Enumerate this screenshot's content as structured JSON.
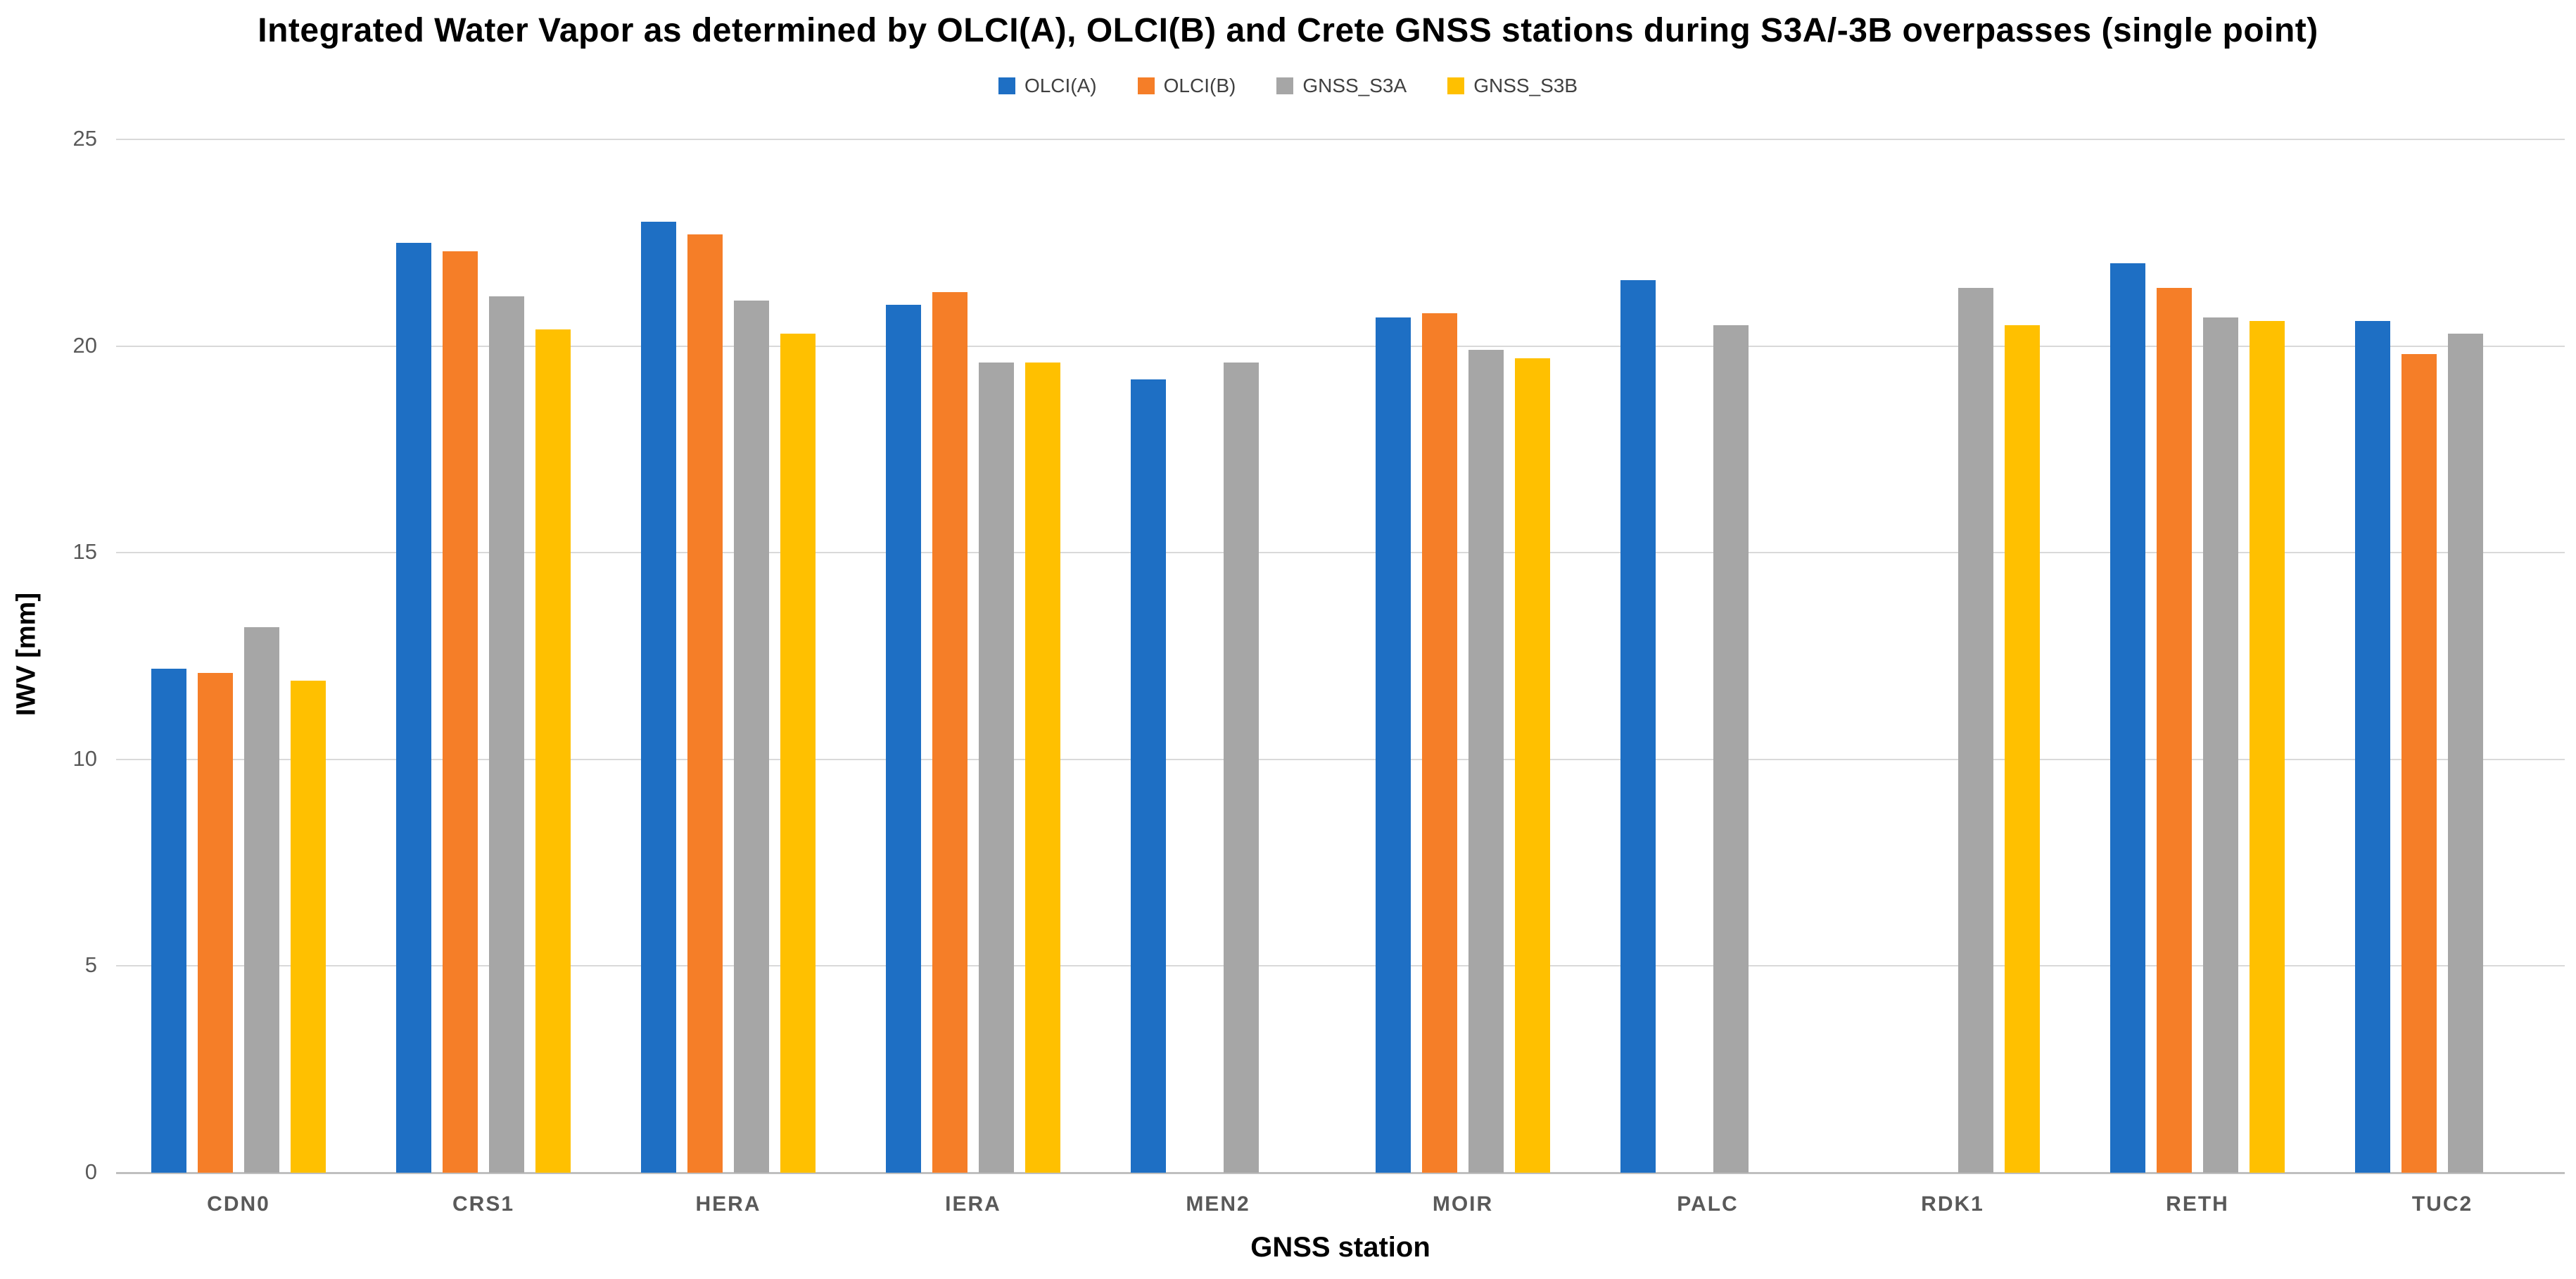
{
  "title": "Integrated Water Vapor as determined by OLCI(A), OLCI(B) and Crete GNSS stations during S3A/-3B overpasses (single point)",
  "axes": {
    "y_title": "IWV [mm]",
    "x_title": "GNSS station",
    "yticks": [
      0,
      5,
      10,
      15,
      20,
      25
    ],
    "ymax": 25
  },
  "colors": {
    "olci_a": "#1e6fc4",
    "olci_b": "#f57e28",
    "gnss_s3a": "#a6a6a6",
    "gnss_s3b": "#ffc000",
    "gridline": "#d9d9d9",
    "tick_text": "#595959"
  },
  "chart_data": {
    "type": "bar",
    "title": "Integrated Water Vapor as determined by OLCI(A), OLCI(B) and Crete GNSS stations during S3A/-3B overpasses (single point)",
    "xlabel": "GNSS station",
    "ylabel": "IWV [mm]",
    "ylim": [
      0,
      25
    ],
    "grid": true,
    "legend_position": "top",
    "categories": [
      "CDN0",
      "CRS1",
      "HERA",
      "IERA",
      "MEN2",
      "MOIR",
      "PALC",
      "RDK1",
      "RETH",
      "TUC2"
    ],
    "series": [
      {
        "name": "OLCI(A)",
        "color": "#1e6fc4",
        "values": [
          12.2,
          22.5,
          23.0,
          21.0,
          19.2,
          20.7,
          21.6,
          null,
          22.0,
          20.6
        ]
      },
      {
        "name": "OLCI(B)",
        "color": "#f57e28",
        "values": [
          12.1,
          22.3,
          22.7,
          21.3,
          null,
          20.8,
          null,
          null,
          21.4,
          19.8
        ]
      },
      {
        "name": "GNSS_S3A",
        "color": "#a6a6a6",
        "values": [
          13.2,
          21.2,
          21.1,
          19.6,
          19.6,
          19.9,
          20.5,
          21.4,
          20.7,
          20.3
        ]
      },
      {
        "name": "GNSS_S3B",
        "color": "#ffc000",
        "values": [
          11.9,
          20.4,
          20.3,
          19.6,
          null,
          19.7,
          null,
          20.5,
          20.6,
          null
        ]
      }
    ]
  }
}
